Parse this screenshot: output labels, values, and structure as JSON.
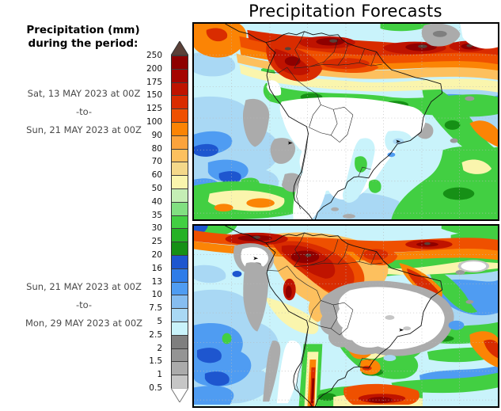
{
  "title": "Precipitation Forecasts",
  "legend": {
    "header_line1": "Precipitation (mm)",
    "header_line2": "during the period:",
    "period1": {
      "from": "Sat, 13 MAY 2023 at 00Z",
      "separator": "-to-",
      "to": "Sun, 21 MAY 2023 at 00Z"
    },
    "period2": {
      "from": "Sun, 21 MAY 2023 at 00Z",
      "separator": "-to-",
      "to": "Mon, 29 MAY 2023 at 00Z"
    }
  },
  "colorbar": {
    "unit": "mm",
    "tick_labels": [
      "250",
      "200",
      "175",
      "150",
      "125",
      "100",
      "90",
      "80",
      "70",
      "60",
      "50",
      "40",
      "35",
      "30",
      "25",
      "20",
      "16",
      "13",
      "10",
      "7.5",
      "5",
      "2.5",
      "2",
      "1.5",
      "1",
      "0.5"
    ],
    "cell_colors_top_to_bottom": [
      "#8e0000",
      "#a50500",
      "#bf1300",
      "#d92c00",
      "#ef5000",
      "#fb8405",
      "#fca33c",
      "#fdc05e",
      "#f4d88a",
      "#faf5ad",
      "#c5eeb5",
      "#81df81",
      "#42cf42",
      "#25b125",
      "#169016",
      "#1e56cf",
      "#2f7ce8",
      "#4f9cf2",
      "#86bdf0",
      "#a9d8f4",
      "#c9f3fb",
      "#7f7f7f",
      "#949494",
      "#ababab",
      "#c6c6c6"
    ],
    "overflow_color": "#5b4038",
    "underflow_color": "#ffffff"
  }
}
